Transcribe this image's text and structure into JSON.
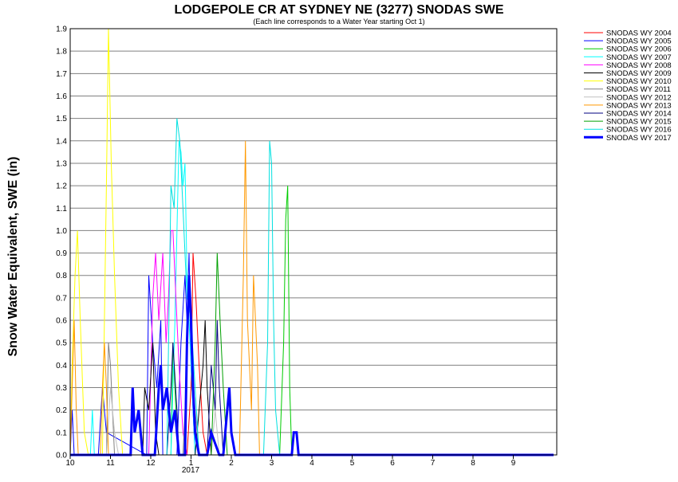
{
  "chart_data": {
    "type": "line",
    "title": "LODGEPOLE CR AT SYDNEY NE (3277) SNODAS SWE",
    "subtitle": "(Each line corresponds to a Water Year starting Oct 1)",
    "ylabel": "Snow Water Equivalent, SWE (in)",
    "xlabel": "",
    "x_ticks": [
      "10",
      "11",
      "12",
      "1",
      "2",
      "3",
      "4",
      "5",
      "6",
      "7",
      "8",
      "9"
    ],
    "x_year_label": "2017",
    "y_ticks": [
      "0.0",
      "0.1",
      "0.2",
      "0.3",
      "0.4",
      "0.5",
      "0.6",
      "0.7",
      "0.8",
      "0.9",
      "1.0",
      "1.1",
      "1.2",
      "1.3",
      "1.4",
      "1.5",
      "1.6",
      "1.7",
      "1.8",
      "1.9"
    ],
    "ylim": [
      0,
      1.9
    ],
    "grid": "horizontal",
    "legend_position": "top-right",
    "series": [
      {
        "name": "SNODAS WY 2004",
        "color": "#ff0000",
        "width": 1,
        "points": [
          [
            0.0,
            0
          ],
          [
            2.9,
            0
          ],
          [
            3.0,
            0.3
          ],
          [
            3.05,
            0.9
          ],
          [
            3.12,
            0.7
          ],
          [
            3.2,
            0.4
          ],
          [
            3.3,
            0.1
          ],
          [
            3.4,
            0
          ]
        ]
      },
      {
        "name": "SNODAS WY 2005",
        "color": "#0000ff",
        "width": 1,
        "points": [
          [
            0.0,
            0
          ],
          [
            0.05,
            0.2
          ],
          [
            0.1,
            0
          ],
          [
            0.7,
            0
          ],
          [
            0.8,
            0.3
          ],
          [
            0.9,
            0.1
          ],
          [
            1.9,
            0
          ],
          [
            1.95,
            0.8
          ],
          [
            2.05,
            0.5
          ],
          [
            2.15,
            0.3
          ],
          [
            2.25,
            0.6
          ],
          [
            2.3,
            0
          ],
          [
            2.65,
            0
          ],
          [
            2.75,
            0.5
          ],
          [
            2.85,
            0.8
          ],
          [
            2.9,
            0.6
          ],
          [
            2.95,
            0.9
          ],
          [
            3.0,
            0.4
          ],
          [
            3.05,
            0.2
          ],
          [
            3.1,
            0
          ]
        ]
      },
      {
        "name": "SNODAS WY 2006",
        "color": "#00cc00",
        "width": 1,
        "points": [
          [
            0.0,
            0
          ],
          [
            2.5,
            0
          ],
          [
            2.55,
            0.5
          ],
          [
            2.6,
            0.3
          ],
          [
            2.65,
            0.1
          ],
          [
            2.7,
            0
          ],
          [
            5.2,
            0
          ],
          [
            5.3,
            0.5
          ],
          [
            5.35,
            1.05
          ],
          [
            5.4,
            1.2
          ],
          [
            5.45,
            0.3
          ],
          [
            5.5,
            0
          ]
        ]
      },
      {
        "name": "SNODAS WY 2007",
        "color": "#00ffff",
        "width": 1,
        "points": [
          [
            0.0,
            0
          ],
          [
            0.5,
            0
          ],
          [
            0.55,
            0.2
          ],
          [
            0.6,
            0
          ],
          [
            2.5,
            0
          ],
          [
            2.6,
            0.6
          ],
          [
            2.7,
            1.4
          ],
          [
            2.75,
            1.35
          ],
          [
            2.8,
            1.2
          ],
          [
            2.85,
            1.3
          ],
          [
            2.9,
            0.8
          ],
          [
            3.0,
            0.4
          ],
          [
            3.1,
            0
          ]
        ]
      },
      {
        "name": "SNODAS WY 2008",
        "color": "#ff00ff",
        "width": 1,
        "points": [
          [
            0.0,
            0
          ],
          [
            1.95,
            0
          ],
          [
            2.05,
            0.7
          ],
          [
            2.12,
            0.9
          ],
          [
            2.2,
            0.6
          ],
          [
            2.3,
            0.9
          ],
          [
            2.38,
            0.5
          ],
          [
            2.44,
            0.7
          ],
          [
            2.5,
            1.0
          ],
          [
            2.55,
            1.0
          ],
          [
            2.6,
            0.8
          ],
          [
            2.7,
            0.4
          ],
          [
            2.8,
            0.1
          ],
          [
            2.9,
            0
          ]
        ]
      },
      {
        "name": "SNODAS WY 2009",
        "color": "#000000",
        "width": 1,
        "points": [
          [
            0.0,
            0
          ],
          [
            1.8,
            0
          ],
          [
            1.85,
            0.3
          ],
          [
            1.95,
            0.2
          ],
          [
            2.05,
            0.5
          ],
          [
            2.12,
            0.1
          ],
          [
            2.2,
            0
          ],
          [
            3.1,
            0
          ],
          [
            3.2,
            0.2
          ],
          [
            3.3,
            0.4
          ],
          [
            3.35,
            0.6
          ],
          [
            3.4,
            0.3
          ],
          [
            3.5,
            0
          ]
        ]
      },
      {
        "name": "SNODAS WY 2010",
        "color": "#ffff00",
        "width": 1,
        "points": [
          [
            0.0,
            0
          ],
          [
            0.05,
            0.4
          ],
          [
            0.12,
            0.8
          ],
          [
            0.18,
            1.0
          ],
          [
            0.25,
            0.6
          ],
          [
            0.35,
            0.1
          ],
          [
            0.45,
            0
          ],
          [
            0.8,
            0
          ],
          [
            0.9,
            1.2
          ],
          [
            0.95,
            1.9
          ],
          [
            1.02,
            1.3
          ],
          [
            1.1,
            0.8
          ],
          [
            1.2,
            0.3
          ],
          [
            1.3,
            0
          ]
        ]
      },
      {
        "name": "SNODAS WY 2011",
        "color": "#808080",
        "width": 1,
        "points": [
          [
            0.0,
            0
          ],
          [
            0.9,
            0
          ],
          [
            0.95,
            0.5
          ],
          [
            1.0,
            0.4
          ],
          [
            1.05,
            0.2
          ],
          [
            1.1,
            0
          ],
          [
            2.8,
            0
          ],
          [
            2.9,
            0.4
          ],
          [
            2.95,
            0.8
          ],
          [
            3.0,
            0.5
          ],
          [
            3.1,
            0.2
          ],
          [
            3.2,
            0
          ]
        ]
      },
      {
        "name": "SNODAS WY 2012",
        "color": "#c0c0c0",
        "width": 1,
        "points": [
          [
            0.0,
            0
          ],
          [
            0.9,
            0
          ],
          [
            1.0,
            0.3
          ],
          [
            1.1,
            0.1
          ],
          [
            1.2,
            0
          ],
          [
            3.5,
            0
          ],
          [
            3.6,
            0.2
          ],
          [
            3.7,
            0
          ]
        ]
      },
      {
        "name": "SNODAS WY 2013",
        "color": "#ff9900",
        "width": 1,
        "points": [
          [
            0.0,
            0
          ],
          [
            0.05,
            0.3
          ],
          [
            0.1,
            0.6
          ],
          [
            0.15,
            0.2
          ],
          [
            0.2,
            0
          ],
          [
            0.75,
            0
          ],
          [
            0.8,
            0.3
          ],
          [
            0.85,
            0.5
          ],
          [
            0.9,
            0.3
          ],
          [
            0.95,
            0
          ],
          [
            4.2,
            0
          ],
          [
            4.3,
            0.8
          ],
          [
            4.35,
            1.4
          ],
          [
            4.4,
            0.6
          ],
          [
            4.5,
            0.2
          ],
          [
            4.55,
            0.8
          ],
          [
            4.65,
            0.4
          ],
          [
            4.7,
            0
          ]
        ]
      },
      {
        "name": "SNODAS WY 2014",
        "color": "#000080",
        "width": 1,
        "points": [
          [
            0.0,
            0
          ],
          [
            2.4,
            0
          ],
          [
            2.5,
            0.3
          ],
          [
            2.55,
            0.5
          ],
          [
            2.65,
            0.2
          ],
          [
            2.7,
            0
          ],
          [
            3.4,
            0
          ],
          [
            3.5,
            0.4
          ],
          [
            3.6,
            0.2
          ],
          [
            3.65,
            0.6
          ],
          [
            3.7,
            0.3
          ],
          [
            3.8,
            0
          ]
        ]
      },
      {
        "name": "SNODAS WY 2015",
        "color": "#00a000",
        "width": 1,
        "points": [
          [
            0.0,
            0
          ],
          [
            3.5,
            0
          ],
          [
            3.6,
            0.5
          ],
          [
            3.65,
            0.9
          ],
          [
            3.72,
            0.6
          ],
          [
            3.8,
            0.3
          ],
          [
            3.9,
            0
          ]
        ]
      },
      {
        "name": "SNODAS WY 2016",
        "color": "#00e0e0",
        "width": 1,
        "points": [
          [
            0.0,
            0
          ],
          [
            2.4,
            0
          ],
          [
            2.5,
            1.2
          ],
          [
            2.58,
            1.1
          ],
          [
            2.65,
            1.5
          ],
          [
            2.72,
            1.4
          ],
          [
            2.8,
            1.1
          ],
          [
            2.9,
            0.7
          ],
          [
            3.0,
            0.6
          ],
          [
            3.1,
            0.3
          ],
          [
            3.2,
            0
          ],
          [
            4.8,
            0
          ],
          [
            4.9,
            0.5
          ],
          [
            4.95,
            1.4
          ],
          [
            5.0,
            1.3
          ],
          [
            5.05,
            0.6
          ],
          [
            5.1,
            0.2
          ],
          [
            5.2,
            0
          ]
        ]
      },
      {
        "name": "SNODAS WY 2017",
        "color": "#0000ff",
        "width": 3,
        "points": [
          [
            0.0,
            0
          ],
          [
            1.5,
            0
          ],
          [
            1.55,
            0.3
          ],
          [
            1.6,
            0.1
          ],
          [
            1.7,
            0.2
          ],
          [
            1.8,
            0
          ],
          [
            2.1,
            0
          ],
          [
            2.2,
            0.3
          ],
          [
            2.25,
            0.4
          ],
          [
            2.3,
            0.2
          ],
          [
            2.4,
            0.3
          ],
          [
            2.5,
            0.1
          ],
          [
            2.6,
            0.2
          ],
          [
            2.7,
            0
          ],
          [
            2.85,
            0
          ],
          [
            2.9,
            0.5
          ],
          [
            2.95,
            0.8
          ],
          [
            3.0,
            0.6
          ],
          [
            3.05,
            0.3
          ],
          [
            3.1,
            0.1
          ],
          [
            3.2,
            0
          ],
          [
            3.4,
            0
          ],
          [
            3.5,
            0.1
          ],
          [
            3.6,
            0.05
          ],
          [
            3.7,
            0
          ],
          [
            3.8,
            0
          ],
          [
            3.9,
            0.2
          ],
          [
            3.95,
            0.3
          ],
          [
            4.0,
            0.1
          ],
          [
            4.1,
            0
          ],
          [
            5.5,
            0
          ],
          [
            5.55,
            0.1
          ],
          [
            5.62,
            0.1
          ],
          [
            5.67,
            0
          ],
          [
            12.0,
            0
          ]
        ]
      }
    ]
  }
}
